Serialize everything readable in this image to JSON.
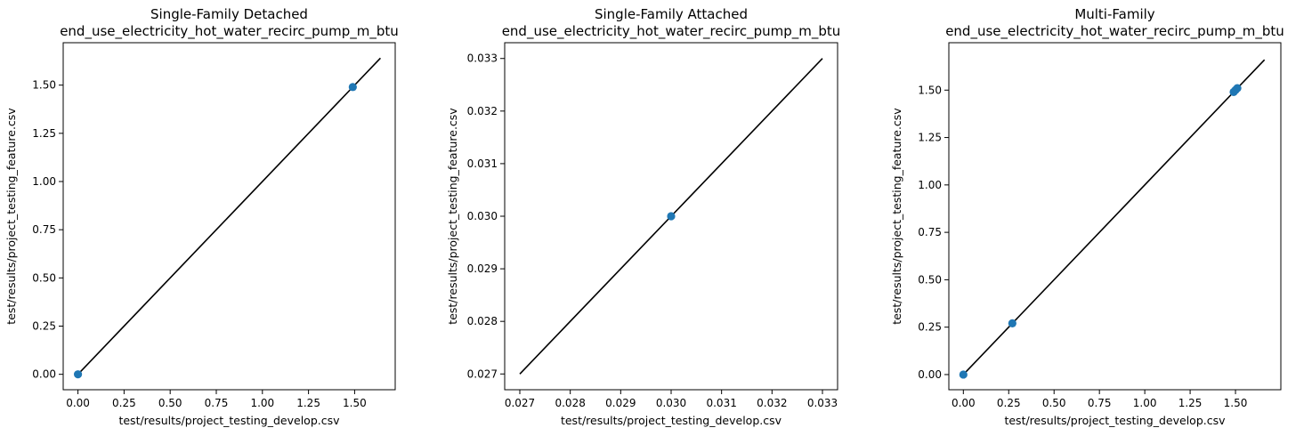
{
  "colors": {
    "marker": "#1f77b4",
    "identity_line": "#000000",
    "axes": "#000000",
    "background": "#ffffff"
  },
  "chart_data": [
    {
      "type": "scatter",
      "title_line1": "Single-Family Detached",
      "title_line2": "end_use_electricity_hot_water_recirc_pump_m_btu",
      "xlabel": "test/results/project_testing_develop.csv",
      "ylabel": "test/results/project_testing_feature.csv",
      "xlim": [
        -0.08,
        1.72
      ],
      "ylim": [
        -0.08,
        1.72
      ],
      "xticks": [
        0.0,
        0.25,
        0.5,
        0.75,
        1.0,
        1.25,
        1.5
      ],
      "xtick_labels": [
        "0.00",
        "0.25",
        "0.50",
        "0.75",
        "1.00",
        "1.25",
        "1.50"
      ],
      "yticks": [
        0.0,
        0.25,
        0.5,
        0.75,
        1.0,
        1.25,
        1.5
      ],
      "ytick_labels": [
        "0.00",
        "0.25",
        "0.50",
        "0.75",
        "1.00",
        "1.25",
        "1.50"
      ],
      "points": [
        {
          "x": 0.0,
          "y": 0.0
        },
        {
          "x": 1.49,
          "y": 1.49
        }
      ],
      "identity_line": [
        0.0,
        1.64
      ]
    },
    {
      "type": "scatter",
      "title_line1": "Single-Family Attached",
      "title_line2": "end_use_electricity_hot_water_recirc_pump_m_btu",
      "xlabel": "test/results/project_testing_develop.csv",
      "ylabel": "test/results/project_testing_feature.csv",
      "xlim": [
        0.0267,
        0.0333
      ],
      "ylim": [
        0.0267,
        0.0333
      ],
      "xticks": [
        0.027,
        0.028,
        0.029,
        0.03,
        0.031,
        0.032,
        0.033
      ],
      "xtick_labels": [
        "0.027",
        "0.028",
        "0.029",
        "0.030",
        "0.031",
        "0.032",
        "0.033"
      ],
      "yticks": [
        0.027,
        0.028,
        0.029,
        0.03,
        0.031,
        0.032,
        0.033
      ],
      "ytick_labels": [
        "0.027",
        "0.028",
        "0.029",
        "0.030",
        "0.031",
        "0.032",
        "0.033"
      ],
      "points": [
        {
          "x": 0.03,
          "y": 0.03
        }
      ],
      "identity_line": [
        0.027,
        0.033
      ]
    },
    {
      "type": "scatter",
      "title_line1": "Multi-Family",
      "title_line2": "end_use_electricity_hot_water_recirc_pump_m_btu",
      "xlabel": "test/results/project_testing_develop.csv",
      "ylabel": "test/results/project_testing_feature.csv",
      "xlim": [
        -0.08,
        1.75
      ],
      "ylim": [
        -0.08,
        1.75
      ],
      "xticks": [
        0.0,
        0.25,
        0.5,
        0.75,
        1.0,
        1.25,
        1.5
      ],
      "xtick_labels": [
        "0.00",
        "0.25",
        "0.50",
        "0.75",
        "1.00",
        "1.25",
        "1.50"
      ],
      "yticks": [
        0.0,
        0.25,
        0.5,
        0.75,
        1.0,
        1.25,
        1.5
      ],
      "ytick_labels": [
        "0.00",
        "0.25",
        "0.50",
        "0.75",
        "1.00",
        "1.25",
        "1.50"
      ],
      "points": [
        {
          "x": 0.0,
          "y": 0.0
        },
        {
          "x": 0.27,
          "y": 0.27
        },
        {
          "x": 1.49,
          "y": 1.49
        },
        {
          "x": 1.5,
          "y": 1.5
        },
        {
          "x": 1.51,
          "y": 1.51
        }
      ],
      "identity_line": [
        0.0,
        1.66
      ]
    }
  ]
}
